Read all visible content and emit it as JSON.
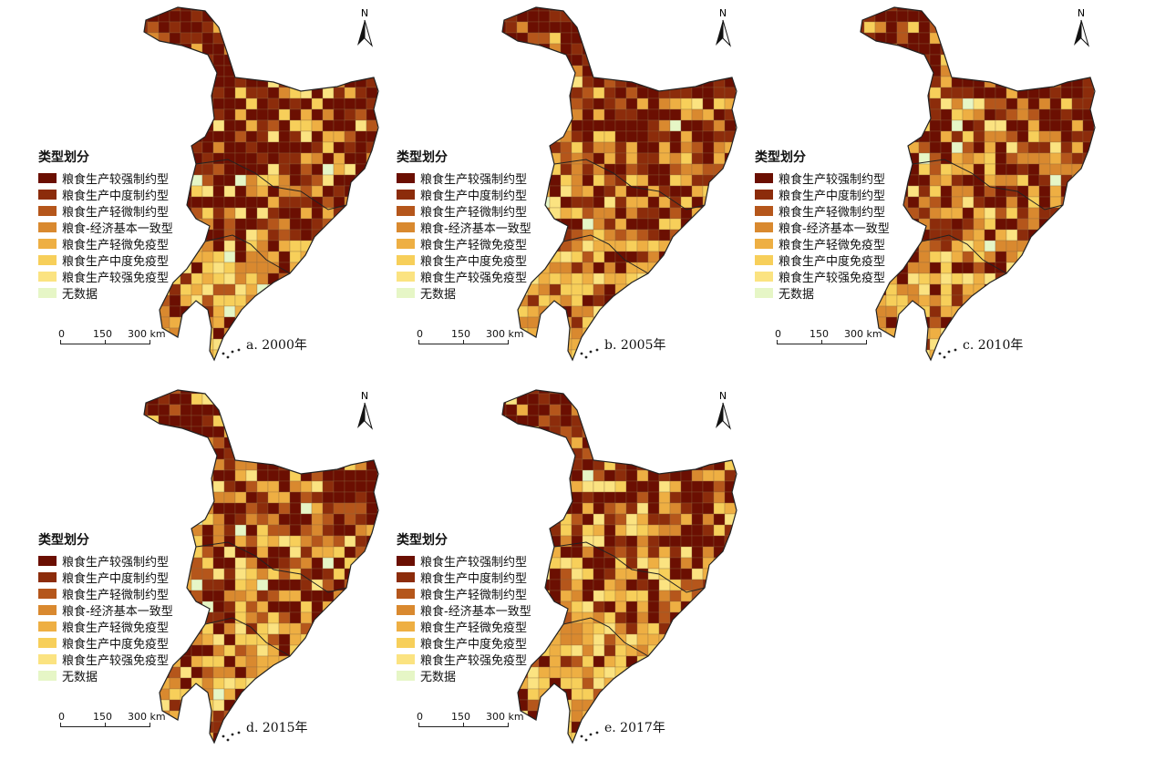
{
  "legend": {
    "title": "类型划分",
    "items": [
      {
        "label": "粮食生产较强制约型",
        "color": "#6b0f02"
      },
      {
        "label": "粮食生产中度制约型",
        "color": "#8c2c0b"
      },
      {
        "label": "粮食生产轻微制约型",
        "color": "#b5561b"
      },
      {
        "label": "粮食-经济基本一致型",
        "color": "#d9892f"
      },
      {
        "label": "粮食生产轻微免疫型",
        "color": "#eeaf43"
      },
      {
        "label": "粮食生产中度免疫型",
        "color": "#f7cf5a"
      },
      {
        "label": "粮食生产较强免疫型",
        "color": "#fbe381"
      },
      {
        "label": "无数据",
        "color": "#e6f6c6"
      }
    ]
  },
  "scalebar": {
    "labels": [
      "0",
      "150",
      "300 km"
    ]
  },
  "north_label": "N",
  "panels": [
    {
      "caption": "a. 2000年",
      "composition": [
        34,
        16,
        12,
        10,
        10,
        9,
        5,
        4
      ]
    },
    {
      "caption": "b. 2005年",
      "composition": [
        30,
        14,
        12,
        12,
        12,
        10,
        6,
        4
      ]
    },
    {
      "caption": "c. 2010年",
      "composition": [
        28,
        12,
        12,
        14,
        14,
        11,
        6,
        3
      ]
    },
    {
      "caption": "d. 2015年",
      "composition": [
        26,
        10,
        12,
        14,
        16,
        12,
        7,
        3
      ]
    },
    {
      "caption": "e. 2017年",
      "composition": [
        22,
        8,
        12,
        14,
        18,
        14,
        10,
        2
      ]
    }
  ]
}
